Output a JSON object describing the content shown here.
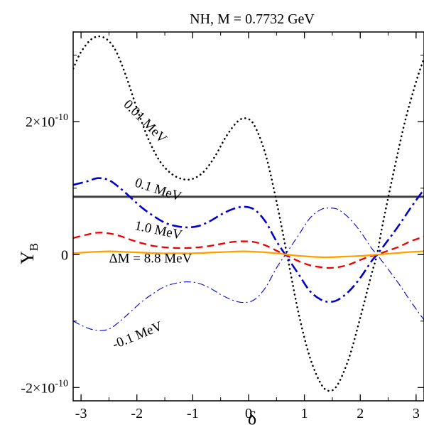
{
  "chart_data": {
    "type": "line",
    "title": "NH, M = 0.7732 GeV",
    "xlabel": "δ",
    "ylabel_main": "Y",
    "ylabel_sub": "B",
    "xlim": [
      -3.14159,
      3.14159
    ],
    "ylim": [
      -2.2e-10,
      3.35e-10
    ],
    "x_ticks": [
      -3,
      -2,
      -1,
      0,
      1,
      2,
      3
    ],
    "x_tick_labels": [
      "-3",
      "-2",
      "-1",
      "0",
      "1",
      "2",
      "3"
    ],
    "y_ticks": [
      {
        "value": -2e-10,
        "mant": "-2×10",
        "exp": "-10"
      },
      {
        "value": 0,
        "mant": "0",
        "exp": ""
      },
      {
        "value": 2e-10,
        "mant": "2×10",
        "exp": "-10"
      }
    ],
    "grid": false,
    "legend": "none",
    "reference_line": {
      "y": 8.7e-11,
      "color": "#404040"
    },
    "series": [
      {
        "name": "0.01 MeV",
        "color": "#000000",
        "style": "dotted",
        "points": [
          [
            -3.14,
            2.8
          ],
          [
            -3.0,
            3.05
          ],
          [
            -2.8,
            3.25
          ],
          [
            -2.6,
            3.27
          ],
          [
            -2.4,
            3.1
          ],
          [
            -2.2,
            2.7
          ],
          [
            -2.0,
            2.2
          ],
          [
            -1.8,
            1.75
          ],
          [
            -1.6,
            1.42
          ],
          [
            -1.4,
            1.23
          ],
          [
            -1.2,
            1.14
          ],
          [
            -1.0,
            1.14
          ],
          [
            -0.8,
            1.25
          ],
          [
            -0.6,
            1.48
          ],
          [
            -0.4,
            1.78
          ],
          [
            -0.2,
            2.0
          ],
          [
            -0.05,
            2.05
          ],
          [
            0.1,
            1.95
          ],
          [
            0.3,
            1.52
          ],
          [
            0.5,
            0.8
          ],
          [
            0.7,
            -0.05
          ],
          [
            0.9,
            -0.9
          ],
          [
            1.1,
            -1.55
          ],
          [
            1.3,
            -1.95
          ],
          [
            1.45,
            -2.05
          ],
          [
            1.6,
            -1.95
          ],
          [
            1.8,
            -1.55
          ],
          [
            2.0,
            -0.95
          ],
          [
            2.2,
            -0.3
          ],
          [
            2.3,
            0.0
          ],
          [
            2.4,
            0.45
          ],
          [
            2.6,
            1.25
          ],
          [
            2.8,
            2.0
          ],
          [
            3.0,
            2.6
          ],
          [
            3.14,
            2.95
          ]
        ],
        "labels": [
          {
            "text": "0.01 MeV",
            "x": -2.25,
            "y": 2.25,
            "rotate": 45
          }
        ]
      },
      {
        "name": "0.1 MeV",
        "color": "#0000cc",
        "style": "dashdot",
        "points": [
          [
            -3.14,
            1.05
          ],
          [
            -2.9,
            1.1
          ],
          [
            -2.7,
            1.15
          ],
          [
            -2.5,
            1.12
          ],
          [
            -2.3,
            1.0
          ],
          [
            -2.1,
            0.85
          ],
          [
            -1.9,
            0.7
          ],
          [
            -1.7,
            0.58
          ],
          [
            -1.5,
            0.48
          ],
          [
            -1.3,
            0.43
          ],
          [
            -1.1,
            0.41
          ],
          [
            -0.9,
            0.43
          ],
          [
            -0.7,
            0.5
          ],
          [
            -0.5,
            0.6
          ],
          [
            -0.3,
            0.68
          ],
          [
            -0.1,
            0.72
          ],
          [
            0.1,
            0.68
          ],
          [
            0.3,
            0.5
          ],
          [
            0.5,
            0.2
          ],
          [
            0.7,
            -0.05
          ],
          [
            0.9,
            -0.3
          ],
          [
            1.1,
            -0.55
          ],
          [
            1.3,
            -0.68
          ],
          [
            1.45,
            -0.71
          ],
          [
            1.6,
            -0.68
          ],
          [
            1.8,
            -0.55
          ],
          [
            2.0,
            -0.35
          ],
          [
            2.2,
            -0.1
          ],
          [
            2.3,
            0.0
          ],
          [
            2.5,
            0.22
          ],
          [
            2.7,
            0.45
          ],
          [
            2.9,
            0.7
          ],
          [
            3.14,
            0.98
          ]
        ],
        "labels": [
          {
            "text": "0.1 MeV",
            "x": -2.05,
            "y": 1.03,
            "rotate": 18
          }
        ]
      },
      {
        "name": "-0.1 MeV",
        "color": "#0000cc",
        "style": "thin-dashdot",
        "points": [
          [
            -3.14,
            -1.0
          ],
          [
            -2.9,
            -1.1
          ],
          [
            -2.7,
            -1.14
          ],
          [
            -2.5,
            -1.12
          ],
          [
            -2.3,
            -1.0
          ],
          [
            -2.1,
            -0.85
          ],
          [
            -1.9,
            -0.7
          ],
          [
            -1.7,
            -0.58
          ],
          [
            -1.5,
            -0.48
          ],
          [
            -1.3,
            -0.43
          ],
          [
            -1.1,
            -0.41
          ],
          [
            -0.9,
            -0.43
          ],
          [
            -0.7,
            -0.5
          ],
          [
            -0.5,
            -0.6
          ],
          [
            -0.3,
            -0.68
          ],
          [
            -0.1,
            -0.72
          ],
          [
            0.1,
            -0.68
          ],
          [
            0.3,
            -0.5
          ],
          [
            0.5,
            -0.2
          ],
          [
            0.7,
            0.05
          ],
          [
            0.9,
            0.3
          ],
          [
            1.1,
            0.55
          ],
          [
            1.3,
            0.68
          ],
          [
            1.45,
            0.7
          ],
          [
            1.6,
            0.68
          ],
          [
            1.8,
            0.55
          ],
          [
            2.0,
            0.35
          ],
          [
            2.2,
            0.1
          ],
          [
            2.3,
            0.0
          ],
          [
            2.5,
            -0.22
          ],
          [
            2.7,
            -0.45
          ],
          [
            2.9,
            -0.7
          ],
          [
            3.14,
            -0.98
          ]
        ],
        "labels": [
          {
            "text": "-0.1 MeV",
            "x": -2.4,
            "y": -1.42,
            "rotate": -22
          }
        ]
      },
      {
        "name": "1.0 MeV",
        "color": "#ee0000",
        "style": "dashed",
        "points": [
          [
            -3.14,
            0.25
          ],
          [
            -2.9,
            0.3
          ],
          [
            -2.7,
            0.33
          ],
          [
            -2.5,
            0.32
          ],
          [
            -2.3,
            0.28
          ],
          [
            -2.1,
            0.22
          ],
          [
            -1.9,
            0.17
          ],
          [
            -1.7,
            0.13
          ],
          [
            -1.5,
            0.11
          ],
          [
            -1.3,
            0.1
          ],
          [
            -1.1,
            0.1
          ],
          [
            -0.9,
            0.11
          ],
          [
            -0.7,
            0.13
          ],
          [
            -0.5,
            0.16
          ],
          [
            -0.3,
            0.19
          ],
          [
            -0.1,
            0.2
          ],
          [
            0.1,
            0.19
          ],
          [
            0.3,
            0.14
          ],
          [
            0.5,
            0.06
          ],
          [
            0.7,
            -0.02
          ],
          [
            0.9,
            -0.1
          ],
          [
            1.1,
            -0.16
          ],
          [
            1.3,
            -0.19
          ],
          [
            1.45,
            -0.2
          ],
          [
            1.6,
            -0.19
          ],
          [
            1.8,
            -0.15
          ],
          [
            2.0,
            -0.08
          ],
          [
            2.2,
            -0.02
          ],
          [
            2.3,
            0.0
          ],
          [
            2.5,
            0.06
          ],
          [
            2.7,
            0.12
          ],
          [
            2.9,
            0.2
          ],
          [
            3.14,
            0.27
          ]
        ],
        "labels": [
          {
            "text": "1.0 MeV",
            "x": -2.05,
            "y": 0.38,
            "rotate": 12
          }
        ]
      },
      {
        "name": "ΔM = 8.8 MeV",
        "color": "#ffa000",
        "style": "solid",
        "points": [
          [
            -3.14,
            0.02
          ],
          [
            -2.8,
            0.04
          ],
          [
            -2.5,
            0.05
          ],
          [
            -2.2,
            0.04
          ],
          [
            -1.9,
            0.03
          ],
          [
            -1.6,
            0.02
          ],
          [
            -1.3,
            0.02
          ],
          [
            -1.0,
            0.02
          ],
          [
            -0.7,
            0.03
          ],
          [
            -0.4,
            0.04
          ],
          [
            -0.1,
            0.05
          ],
          [
            0.2,
            0.04
          ],
          [
            0.5,
            0.02
          ],
          [
            0.8,
            -0.01
          ],
          [
            1.1,
            -0.03
          ],
          [
            1.4,
            -0.04
          ],
          [
            1.7,
            -0.03
          ],
          [
            2.0,
            -0.02
          ],
          [
            2.3,
            0.0
          ],
          [
            2.6,
            0.02
          ],
          [
            2.9,
            0.04
          ],
          [
            3.14,
            0.05
          ]
        ],
        "labels": [
          {
            "text": "ΔM = 8.8 MeV",
            "x": -2.5,
            "y": -0.12,
            "rotate": 0
          }
        ]
      }
    ]
  }
}
